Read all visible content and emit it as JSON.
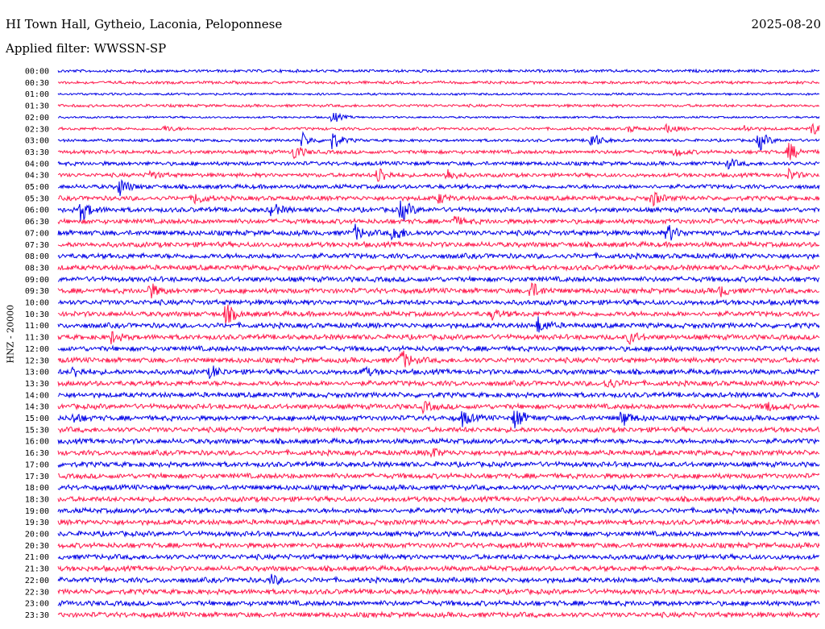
{
  "header": {
    "station": "HI Town Hall, Gytheio, Laconia, Peloponnese",
    "date": "2025-08-20",
    "filter_text": "Applied filter: WWSSN-SP"
  },
  "chart_data": {
    "type": "helicorder",
    "channel_label": "HNZ - 20000",
    "trace_colors": [
      "#0000e6",
      "#ff1a4d"
    ],
    "rows": [
      {
        "time": "00:00",
        "noise": 2,
        "events": []
      },
      {
        "time": "00:30",
        "noise": 2,
        "events": []
      },
      {
        "time": "01:00",
        "noise": 1.6,
        "events": []
      },
      {
        "time": "01:30",
        "noise": 2,
        "events": []
      },
      {
        "time": "02:00",
        "noise": 1.4,
        "events": [
          {
            "pos": 0.36,
            "amp": 8
          }
        ]
      },
      {
        "time": "02:30",
        "noise": 2,
        "events": [
          {
            "pos": 0.14,
            "amp": 4
          },
          {
            "pos": 0.75,
            "amp": 4
          },
          {
            "pos": 0.8,
            "amp": 6
          },
          {
            "pos": 0.9,
            "amp": 5
          },
          {
            "pos": 0.99,
            "amp": 9
          }
        ]
      },
      {
        "time": "03:00",
        "noise": 2,
        "events": [
          {
            "pos": 0.32,
            "amp": 10
          },
          {
            "pos": 0.36,
            "amp": 12
          },
          {
            "pos": 0.7,
            "amp": 12
          },
          {
            "pos": 0.92,
            "amp": 14
          }
        ]
      },
      {
        "time": "03:30",
        "noise": 2.6,
        "events": [
          {
            "pos": 0.31,
            "amp": 10
          },
          {
            "pos": 0.81,
            "amp": 6
          },
          {
            "pos": 0.96,
            "amp": 12
          }
        ]
      },
      {
        "time": "04:00",
        "noise": 2.8,
        "events": [
          {
            "pos": 0.88,
            "amp": 6
          }
        ]
      },
      {
        "time": "04:30",
        "noise": 2.8,
        "events": [
          {
            "pos": 0.12,
            "amp": 6
          },
          {
            "pos": 0.42,
            "amp": 12
          },
          {
            "pos": 0.51,
            "amp": 9
          },
          {
            "pos": 0.96,
            "amp": 7
          }
        ]
      },
      {
        "time": "05:00",
        "noise": 3,
        "events": [
          {
            "pos": 0.08,
            "amp": 12
          }
        ]
      },
      {
        "time": "05:30",
        "noise": 3.2,
        "events": [
          {
            "pos": 0.18,
            "amp": 8
          },
          {
            "pos": 0.5,
            "amp": 6
          },
          {
            "pos": 0.78,
            "amp": 10
          }
        ]
      },
      {
        "time": "06:00",
        "noise": 3.4,
        "events": [
          {
            "pos": 0.03,
            "amp": 14
          },
          {
            "pos": 0.28,
            "amp": 9
          },
          {
            "pos": 0.45,
            "amp": 16
          }
        ]
      },
      {
        "time": "06:30",
        "noise": 3.4,
        "events": [
          {
            "pos": 0.52,
            "amp": 6
          }
        ]
      },
      {
        "time": "07:00",
        "noise": 3.6,
        "events": [
          {
            "pos": 0.39,
            "amp": 9
          },
          {
            "pos": 0.44,
            "amp": 13
          },
          {
            "pos": 0.8,
            "amp": 12
          }
        ]
      },
      {
        "time": "07:30",
        "noise": 3.6,
        "events": []
      },
      {
        "time": "08:00",
        "noise": 3.6,
        "events": []
      },
      {
        "time": "08:30",
        "noise": 3.6,
        "events": []
      },
      {
        "time": "09:00",
        "noise": 3.6,
        "events": []
      },
      {
        "time": "09:30",
        "noise": 3.6,
        "events": [
          {
            "pos": 0.12,
            "amp": 10
          },
          {
            "pos": 0.62,
            "amp": 12
          },
          {
            "pos": 0.87,
            "amp": 6
          }
        ]
      },
      {
        "time": "10:00",
        "noise": 3.6,
        "events": []
      },
      {
        "time": "10:30",
        "noise": 3.6,
        "events": [
          {
            "pos": 0.22,
            "amp": 13
          },
          {
            "pos": 0.57,
            "amp": 6
          }
        ]
      },
      {
        "time": "11:00",
        "noise": 3.6,
        "events": [
          {
            "pos": 0.63,
            "amp": 10
          }
        ]
      },
      {
        "time": "11:30",
        "noise": 3.6,
        "events": [
          {
            "pos": 0.07,
            "amp": 7
          },
          {
            "pos": 0.75,
            "amp": 8
          }
        ]
      },
      {
        "time": "12:00",
        "noise": 3.6,
        "events": []
      },
      {
        "time": "12:30",
        "noise": 3.6,
        "events": [
          {
            "pos": 0.45,
            "amp": 14
          }
        ]
      },
      {
        "time": "13:00",
        "noise": 3.6,
        "events": [
          {
            "pos": 0.02,
            "amp": 7
          },
          {
            "pos": 0.2,
            "amp": 8
          },
          {
            "pos": 0.4,
            "amp": 6
          }
        ]
      },
      {
        "time": "13:30",
        "noise": 3.6,
        "events": [
          {
            "pos": 0.72,
            "amp": 8
          }
        ]
      },
      {
        "time": "14:00",
        "noise": 3.6,
        "events": []
      },
      {
        "time": "14:30",
        "noise": 3.6,
        "events": [
          {
            "pos": 0.48,
            "amp": 6
          },
          {
            "pos": 0.93,
            "amp": 6
          }
        ]
      },
      {
        "time": "15:00",
        "noise": 3.6,
        "events": [
          {
            "pos": 0.02,
            "amp": 6
          },
          {
            "pos": 0.53,
            "amp": 10
          },
          {
            "pos": 0.6,
            "amp": 14
          },
          {
            "pos": 0.74,
            "amp": 11
          }
        ]
      },
      {
        "time": "15:30",
        "noise": 3.6,
        "events": []
      },
      {
        "time": "16:00",
        "noise": 3.6,
        "events": []
      },
      {
        "time": "16:30",
        "noise": 3.6,
        "events": [
          {
            "pos": 0.49,
            "amp": 6
          }
        ]
      },
      {
        "time": "17:00",
        "noise": 3.6,
        "events": []
      },
      {
        "time": "17:30",
        "noise": 3.6,
        "events": []
      },
      {
        "time": "18:00",
        "noise": 3.6,
        "events": []
      },
      {
        "time": "18:30",
        "noise": 3.6,
        "events": []
      },
      {
        "time": "19:00",
        "noise": 3.6,
        "events": []
      },
      {
        "time": "19:30",
        "noise": 3.6,
        "events": []
      },
      {
        "time": "20:00",
        "noise": 3.6,
        "events": []
      },
      {
        "time": "20:30",
        "noise": 3.6,
        "events": []
      },
      {
        "time": "21:00",
        "noise": 3.6,
        "events": []
      },
      {
        "time": "21:30",
        "noise": 3.6,
        "events": []
      },
      {
        "time": "22:00",
        "noise": 3.6,
        "events": [
          {
            "pos": 0.28,
            "amp": 6
          }
        ]
      },
      {
        "time": "22:30",
        "noise": 3.6,
        "events": []
      },
      {
        "time": "23:00",
        "noise": 3.6,
        "events": []
      },
      {
        "time": "23:30",
        "noise": 3.6,
        "events": []
      }
    ]
  }
}
